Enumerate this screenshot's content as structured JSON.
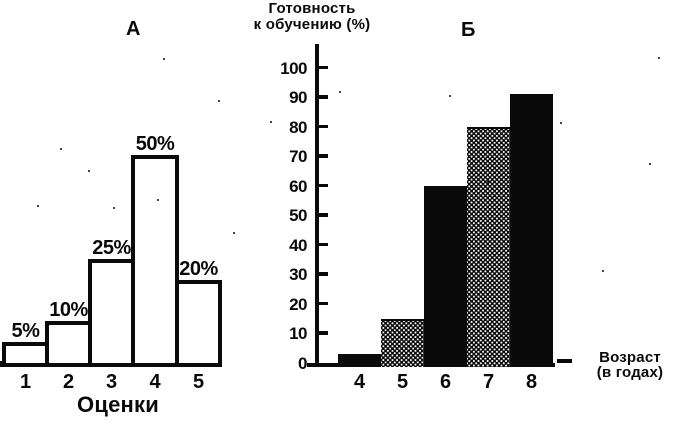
{
  "figure": {
    "description_labels": {
      "panel_a": "А",
      "panel_b": "Б"
    }
  },
  "chart_data": [
    {
      "type": "bar",
      "panel": "А",
      "categories": [
        "1",
        "2",
        "3",
        "4",
        "5"
      ],
      "values": [
        5,
        10,
        25,
        50,
        20
      ],
      "bar_labels": [
        "5%",
        "10%",
        "25%",
        "50%",
        "20%"
      ],
      "xlabel": "Оценки",
      "ylim": [
        0,
        50
      ],
      "bar_style": "white-outline",
      "axes": "baseline-only",
      "grid": "off",
      "legend": "none",
      "ink_color": "#0a0a0a"
    },
    {
      "type": "bar",
      "panel": "Б",
      "ylabel_line1": "Готовность",
      "ylabel_line2": "к обучению (%)",
      "xlabel_line1": "Возраст",
      "xlabel_line2": "(в годах)",
      "categories": [
        "4",
        "5",
        "6",
        "7",
        "8"
      ],
      "values": [
        3,
        15,
        60,
        80,
        91
      ],
      "bar_styles": [
        "solid",
        "stipple",
        "solid",
        "stipple",
        "solid"
      ],
      "yticks": [
        0,
        10,
        20,
        30,
        40,
        50,
        60,
        70,
        80,
        90,
        100
      ],
      "ylim": [
        0,
        100
      ],
      "grid": "off",
      "legend": "none",
      "ink_color": "#0a0a0a"
    }
  ]
}
